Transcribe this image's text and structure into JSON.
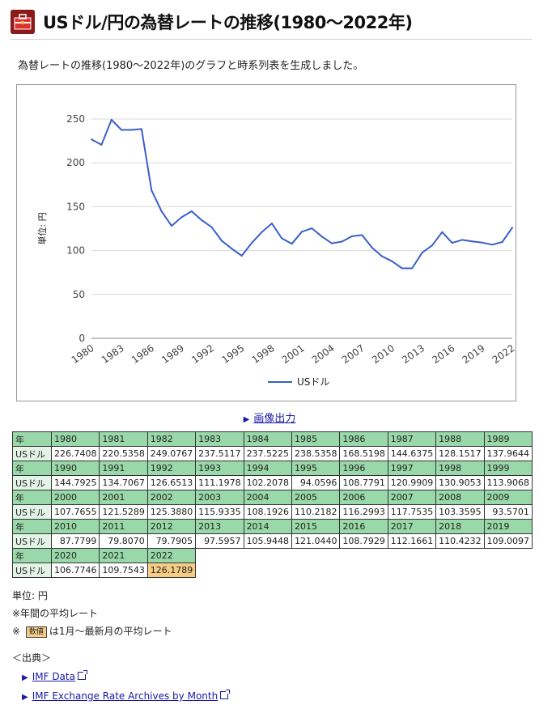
{
  "page": {
    "title": "USドル/円の為替レートの推移(1980〜2022年)",
    "intro": "為替レートの推移(1980〜2022年)のグラフと時系列表を生成しました。",
    "image_link": "画像出力",
    "logo_icon": "toolbox-icon",
    "accent_color": "#3b5fc9"
  },
  "chart_data": {
    "type": "line",
    "ylabel": "単位: 円",
    "ylim": [
      0,
      250
    ],
    "yticks": [
      "0",
      "50",
      "100",
      "150",
      "200",
      "250"
    ],
    "xticks": [
      "1980",
      "1983",
      "1986",
      "1989",
      "1992",
      "1995",
      "1998",
      "2001",
      "2004",
      "2007",
      "2010",
      "2013",
      "2016",
      "2019",
      "2022"
    ],
    "grid": true,
    "legend_position": "bottom",
    "series": [
      {
        "name": "USドル",
        "color": "#3b5fc9",
        "x": [
          1980,
          1981,
          1982,
          1983,
          1984,
          1985,
          1986,
          1987,
          1988,
          1989,
          1990,
          1991,
          1992,
          1993,
          1994,
          1995,
          1996,
          1997,
          1998,
          1999,
          2000,
          2001,
          2002,
          2003,
          2004,
          2005,
          2006,
          2007,
          2008,
          2009,
          2010,
          2011,
          2012,
          2013,
          2014,
          2015,
          2016,
          2017,
          2018,
          2019,
          2020,
          2021,
          2022
        ],
        "values": [
          226.7408,
          220.5358,
          249.0767,
          237.5117,
          237.5225,
          238.5358,
          168.5198,
          144.6375,
          128.1517,
          137.9644,
          144.7925,
          134.7067,
          126.6513,
          111.1978,
          102.2078,
          94.0596,
          108.7791,
          120.9909,
          130.9053,
          113.9068,
          107.7655,
          121.5289,
          125.388,
          115.9335,
          108.1926,
          110.2182,
          116.2993,
          117.7535,
          103.3595,
          93.5701,
          87.7799,
          79.807,
          79.7905,
          97.5957,
          105.9448,
          121.044,
          108.7929,
          112.1661,
          110.4232,
          109.0097,
          106.7746,
          109.7543,
          126.1789
        ]
      }
    ]
  },
  "table": {
    "year_label": "年",
    "series_label": "USドル",
    "rows": [
      {
        "years": [
          "1980",
          "1981",
          "1982",
          "1983",
          "1984",
          "1985",
          "1986",
          "1987",
          "1988",
          "1989"
        ],
        "values": [
          "226.7408",
          "220.5358",
          "249.0767",
          "237.5117",
          "237.5225",
          "238.5358",
          "168.5198",
          "144.6375",
          "128.1517",
          "137.9644"
        ]
      },
      {
        "years": [
          "1990",
          "1991",
          "1992",
          "1993",
          "1994",
          "1995",
          "1996",
          "1997",
          "1998",
          "1999"
        ],
        "values": [
          "144.7925",
          "134.7067",
          "126.6513",
          "111.1978",
          "102.2078",
          "94.0596",
          "108.7791",
          "120.9909",
          "130.9053",
          "113.9068"
        ]
      },
      {
        "years": [
          "2000",
          "2001",
          "2002",
          "2003",
          "2004",
          "2005",
          "2006",
          "2007",
          "2008",
          "2009"
        ],
        "values": [
          "107.7655",
          "121.5289",
          "125.3880",
          "115.9335",
          "108.1926",
          "110.2182",
          "116.2993",
          "117.7535",
          "103.3595",
          "93.5701"
        ]
      },
      {
        "years": [
          "2010",
          "2011",
          "2012",
          "2013",
          "2014",
          "2015",
          "2016",
          "2017",
          "2018",
          "2019"
        ],
        "values": [
          "87.7799",
          "79.8070",
          "79.7905",
          "97.5957",
          "105.9448",
          "121.0440",
          "108.7929",
          "112.1661",
          "110.4232",
          "109.0097"
        ]
      },
      {
        "years": [
          "2020",
          "2021",
          "2022"
        ],
        "values": [
          "106.7746",
          "109.7543",
          "126.1789"
        ]
      }
    ],
    "latest_color": "#f7cd86"
  },
  "notes": {
    "unit": "単位: 円",
    "annual": "※年間の平均レート",
    "prefix": "※",
    "badge": "数値",
    "latest": "は1月〜最新月の平均レート"
  },
  "sources": {
    "header": "＜出典＞",
    "links": [
      "IMF Data",
      "IMF Exchange Rate Archives by Month"
    ]
  }
}
